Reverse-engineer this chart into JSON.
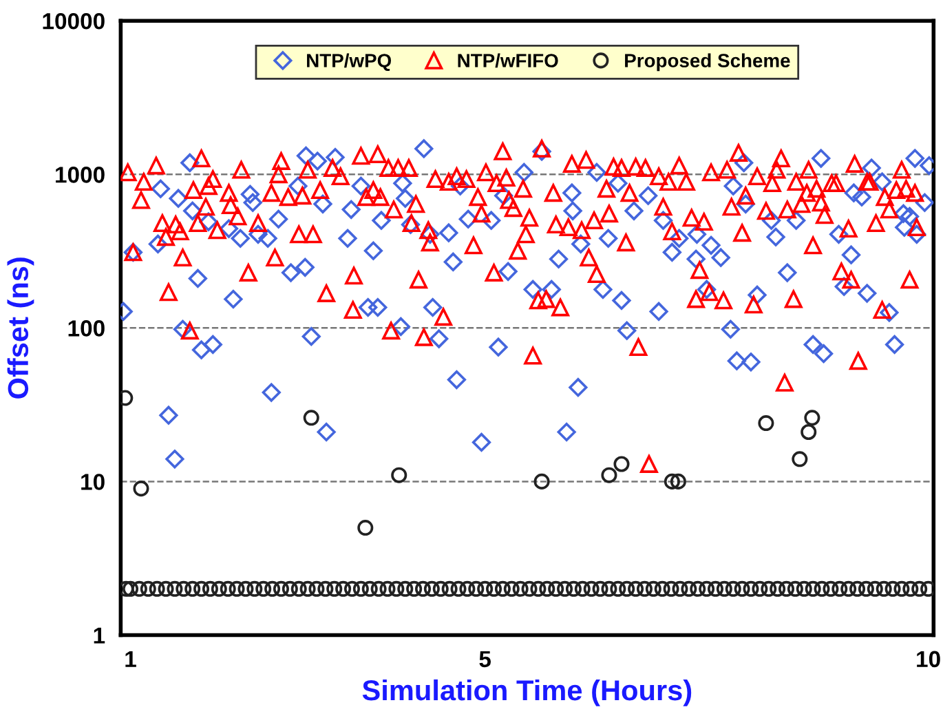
{
  "chart_data": {
    "type": "scatter",
    "xlabel": "Simulation Time (Hours)",
    "ylabel": "Offset (ns)",
    "log": "y",
    "xlim": [
      0.89,
      10.06
    ],
    "xticks": [
      1,
      5,
      10
    ],
    "ylim": [
      1,
      10000
    ],
    "yticks": [
      1,
      10,
      100,
      1000,
      10000
    ],
    "grid": "y",
    "legend": "top",
    "line_style": "dashed",
    "series": [
      {
        "name": "NTP/wPQ",
        "color": "#4466dd",
        "marker": "diamond",
        "x": [
          0.92,
          1.03,
          1.31,
          1.34,
          1.43,
          1.5,
          1.54,
          1.59,
          1.67,
          1.7,
          1.76,
          1.8,
          1.88,
          1.93,
          2.11,
          2.16,
          2.24,
          2.35,
          2.38,
          2.44,
          2.55,
          2.59,
          2.67,
          2.81,
          2.89,
          2.97,
          2.98,
          3.04,
          3.11,
          3.17,
          3.21,
          3.31,
          3.45,
          3.49,
          3.6,
          3.68,
          3.74,
          3.79,
          3.83,
          4.05,
          4.07,
          4.1,
          4.16,
          4.31,
          4.38,
          4.41,
          4.48,
          4.59,
          4.64,
          4.68,
          4.72,
          4.81,
          4.96,
          5.07,
          5.15,
          5.21,
          5.26,
          5.44,
          5.54,
          5.64,
          5.75,
          5.83,
          5.92,
          5.98,
          5.99,
          6.05,
          6.08,
          6.26,
          6.33,
          6.39,
          6.5,
          6.54,
          6.6,
          6.68,
          6.84,
          6.96,
          7.01,
          7.11,
          7.19,
          7.38,
          7.39,
          7.5,
          7.55,
          7.66,
          7.77,
          7.8,
          7.84,
          7.92,
          7.94,
          8.0,
          8.07,
          8.23,
          8.28,
          8.41,
          8.51,
          8.7,
          8.79,
          8.82,
          8.99,
          9.05,
          9.13,
          9.16,
          9.25,
          9.31,
          9.36,
          9.48,
          9.56,
          9.62,
          9.72,
          9.79,
          9.73,
          9.85,
          9.87,
          9.96,
          10.01
        ],
        "values": [
          128,
          311,
          352,
          805,
          27,
          14,
          697,
          98,
          1190,
          578,
          210,
          72,
          491,
          78,
          443,
          154,
          383,
          741,
          655,
          407,
          383,
          38,
          511,
          229,
          839,
          248,
          1320,
          88,
          1220,
          641,
          21,
          1290,
          383,
          590,
          839,
          136,
          318,
          136,
          501,
          102,
          875,
          697,
          471,
          1470,
          407,
          136,
          85,
          416,
          269,
          46,
          839,
          511,
          18,
          501,
          75,
          726,
          233,
          1030,
          178,
          1410,
          178,
          281,
          21,
          757,
          578,
          41,
          352,
          1030,
          178,
          383,
          875,
          151,
          96,
          578,
          726,
          128,
          501,
          311,
          383,
          281,
          407,
          178,
          345,
          287,
          98,
          839,
          61,
          1190,
          641,
          60,
          164,
          501,
          391,
          229,
          501,
          78,
          1270,
          68,
          407,
          186,
          299,
          757,
          711,
          168,
          1100,
          893,
          126,
          78,
          555,
          532,
          452,
          1270,
          407,
          655,
          1140
        ]
      },
      {
        "name": "NTP/wFIFO",
        "color": "#ff0000",
        "marker": "triangle",
        "x": [
          0.97,
          1.03,
          1.12,
          1.15,
          1.29,
          1.36,
          1.4,
          1.43,
          1.51,
          1.56,
          1.59,
          1.67,
          1.71,
          1.76,
          1.8,
          1.85,
          1.88,
          1.93,
          1.98,
          2.11,
          2.13,
          2.21,
          2.25,
          2.33,
          2.44,
          2.59,
          2.63,
          2.67,
          2.7,
          2.78,
          2.9,
          2.94,
          3.0,
          3.06,
          3.14,
          3.21,
          3.28,
          3.37,
          3.51,
          3.52,
          3.6,
          3.66,
          3.74,
          3.79,
          3.82,
          3.91,
          3.94,
          3.97,
          4.02,
          4.14,
          4.17,
          4.22,
          4.25,
          4.31,
          4.36,
          4.38,
          4.44,
          4.53,
          4.59,
          4.68,
          4.79,
          4.87,
          4.92,
          4.96,
          5.01,
          5.1,
          5.13,
          5.2,
          5.24,
          5.27,
          5.32,
          5.37,
          5.43,
          5.46,
          5.5,
          5.54,
          5.6,
          5.64,
          5.69,
          5.77,
          5.8,
          5.85,
          5.94,
          5.98,
          6.09,
          6.14,
          6.17,
          6.23,
          6.26,
          6.37,
          6.4,
          6.45,
          6.54,
          6.59,
          6.63,
          6.7,
          6.73,
          6.81,
          6.85,
          6.96,
          7.01,
          7.07,
          7.11,
          7.19,
          7.27,
          7.33,
          7.38,
          7.42,
          7.47,
          7.53,
          7.55,
          7.69,
          7.73,
          7.78,
          7.86,
          7.9,
          7.94,
          8.03,
          8.07,
          8.17,
          8.24,
          8.29,
          8.34,
          8.38,
          8.41,
          8.48,
          8.51,
          8.57,
          8.63,
          8.65,
          8.7,
          8.74,
          8.79,
          8.83,
          8.91,
          8.96,
          9.02,
          9.1,
          9.13,
          9.17,
          9.21,
          9.31,
          9.34,
          9.41,
          9.48,
          9.51,
          9.56,
          9.64,
          9.7,
          9.75,
          9.79,
          9.85,
          9.87
        ],
        "values": [
          1030,
          311,
          680,
          893,
          1140,
          481,
          391,
          171,
          471,
          425,
          287,
          96,
          789,
          481,
          1270,
          615,
          839,
          931,
          433,
          757,
          629,
          532,
          1070,
          229,
          481,
          757,
          287,
          1000,
          1220,
          711,
          407,
          726,
          1070,
          407,
          789,
          168,
          1100,
          970,
          131,
          219,
          1320,
          711,
          789,
          1350,
          711,
          1100,
          96,
          590,
          1100,
          1100,
          481,
          641,
          206,
          87,
          433,
          360,
          931,
          118,
          893,
          970,
          931,
          345,
          711,
          555,
          1030,
          229,
          875,
          1410,
          951,
          680,
          603,
          318,
          805,
          407,
          521,
          66,
          151,
          1470,
          154,
          757,
          471,
          136,
          452,
          1170,
          433,
          1240,
          287,
          501,
          224,
          805,
          555,
          1120,
          1100,
          360,
          757,
          1120,
          75,
          1100,
          13,
          970,
          615,
          893,
          425,
          1140,
          893,
          521,
          154,
          238,
          491,
          171,
          1030,
          151,
          1070,
          615,
          1380,
          416,
          726,
          142,
          970,
          578,
          875,
          1070,
          1270,
          44,
          590,
          154,
          893,
          641,
          757,
          1070,
          345,
          805,
          655,
          543,
          875,
          875,
          233,
          443,
          206,
          1170,
          61,
          893,
          893,
          481,
          131,
          711,
          590,
          789,
          1070,
          805,
          206,
          757,
          452
        ]
      },
      {
        "name": "Proposed Scheme",
        "color": "#222222",
        "marker": "circle",
        "x": [
          0.95,
          1.0,
          1.1,
          1.2,
          1.3,
          1.4,
          1.5,
          1.6,
          1.7,
          1.8,
          1.9,
          2.0,
          2.1,
          2.2,
          2.3,
          2.4,
          2.5,
          2.6,
          2.7,
          2.8,
          2.9,
          3.0,
          3.1,
          3.2,
          3.3,
          3.4,
          3.5,
          3.6,
          3.7,
          3.8,
          3.9,
          4.0,
          4.1,
          4.2,
          4.3,
          4.4,
          4.5,
          4.6,
          4.7,
          4.8,
          4.9,
          5.0,
          5.1,
          5.2,
          5.3,
          5.4,
          5.5,
          5.6,
          5.7,
          5.8,
          5.9,
          6.0,
          6.1,
          6.2,
          6.3,
          6.4,
          6.5,
          6.6,
          6.7,
          6.8,
          6.9,
          7.0,
          7.1,
          7.2,
          7.3,
          7.4,
          7.5,
          7.6,
          7.7,
          7.8,
          7.9,
          8.0,
          8.1,
          8.2,
          8.3,
          8.4,
          8.5,
          8.6,
          8.7,
          8.8,
          8.9,
          9.0,
          9.1,
          9.2,
          9.3,
          9.4,
          9.5,
          9.6,
          9.7,
          9.8,
          9.9,
          10.0,
          0.94,
          1.12,
          3.04,
          3.65,
          4.03,
          5.64,
          6.4,
          6.54,
          7.11,
          7.18,
          8.17,
          8.55,
          8.65,
          8.69
        ],
        "values": [
          2,
          2,
          2,
          2,
          2,
          2,
          2,
          2,
          2,
          2,
          2,
          2,
          2,
          2,
          2,
          2,
          2,
          2,
          2,
          2,
          2,
          2,
          2,
          2,
          2,
          2,
          2,
          2,
          2,
          2,
          2,
          2,
          2,
          2,
          2,
          2,
          2,
          2,
          2,
          2,
          2,
          2,
          2,
          2,
          2,
          2,
          2,
          2,
          2,
          2,
          2,
          2,
          2,
          2,
          2,
          2,
          2,
          2,
          2,
          2,
          2,
          2,
          2,
          2,
          2,
          2,
          2,
          2,
          2,
          2,
          2,
          2,
          2,
          2,
          2,
          2,
          2,
          2,
          2,
          2,
          2,
          2,
          2,
          2,
          2,
          2,
          2,
          2,
          2,
          2,
          2,
          2,
          35,
          9,
          26,
          5,
          11,
          10,
          11,
          13,
          10,
          10,
          24,
          14,
          21,
          26
        ]
      }
    ]
  }
}
